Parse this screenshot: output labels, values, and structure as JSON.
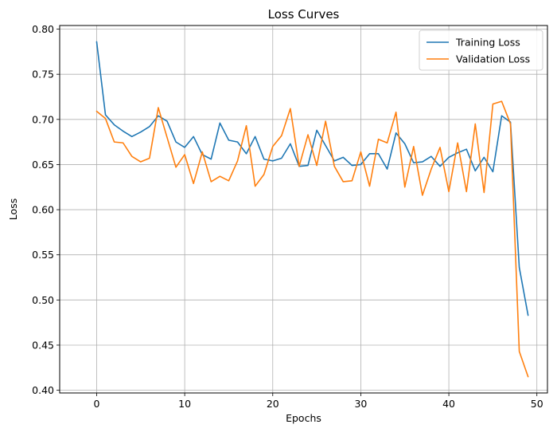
{
  "chart_data": {
    "type": "line",
    "title": "Loss Curves",
    "xlabel": "Epochs",
    "ylabel": "Loss",
    "xlim": [
      -4.2,
      51.2
    ],
    "ylim": [
      0.397,
      0.804
    ],
    "xticks": [
      0,
      10,
      20,
      30,
      40,
      50
    ],
    "yticks": [
      0.4,
      0.45,
      0.5,
      0.55,
      0.6,
      0.65,
      0.7,
      0.75,
      0.8
    ],
    "grid": true,
    "legend_position": "top-right",
    "x": [
      0,
      1,
      2,
      3,
      4,
      5,
      6,
      7,
      8,
      9,
      10,
      11,
      12,
      13,
      14,
      15,
      16,
      17,
      18,
      19,
      20,
      21,
      22,
      23,
      24,
      25,
      26,
      27,
      28,
      29,
      30,
      31,
      32,
      33,
      34,
      35,
      36,
      37,
      38,
      39,
      40,
      41,
      42,
      43,
      44,
      45,
      46,
      47,
      48,
      49
    ],
    "series": [
      {
        "name": "Training Loss",
        "color": "#1f77b4",
        "values": [
          0.786,
          0.705,
          0.694,
          0.687,
          0.681,
          0.686,
          0.692,
          0.704,
          0.698,
          0.675,
          0.669,
          0.681,
          0.661,
          0.656,
          0.696,
          0.677,
          0.675,
          0.662,
          0.681,
          0.656,
          0.654,
          0.657,
          0.673,
          0.648,
          0.649,
          0.688,
          0.671,
          0.654,
          0.658,
          0.649,
          0.65,
          0.662,
          0.662,
          0.645,
          0.685,
          0.673,
          0.652,
          0.653,
          0.659,
          0.648,
          0.658,
          0.663,
          0.667,
          0.643,
          0.658,
          0.642,
          0.704,
          0.697,
          0.536,
          0.483
        ]
      },
      {
        "name": "Validation Loss",
        "color": "#ff7f0e",
        "values": [
          0.709,
          0.701,
          0.675,
          0.674,
          0.659,
          0.653,
          0.657,
          0.713,
          0.68,
          0.647,
          0.661,
          0.629,
          0.664,
          0.631,
          0.637,
          0.632,
          0.654,
          0.693,
          0.626,
          0.639,
          0.67,
          0.682,
          0.712,
          0.648,
          0.683,
          0.649,
          0.698,
          0.648,
          0.631,
          0.632,
          0.664,
          0.626,
          0.678,
          0.674,
          0.708,
          0.625,
          0.67,
          0.616,
          0.645,
          0.669,
          0.62,
          0.674,
          0.62,
          0.695,
          0.619,
          0.717,
          0.72,
          0.695,
          0.443,
          0.415
        ]
      }
    ]
  }
}
